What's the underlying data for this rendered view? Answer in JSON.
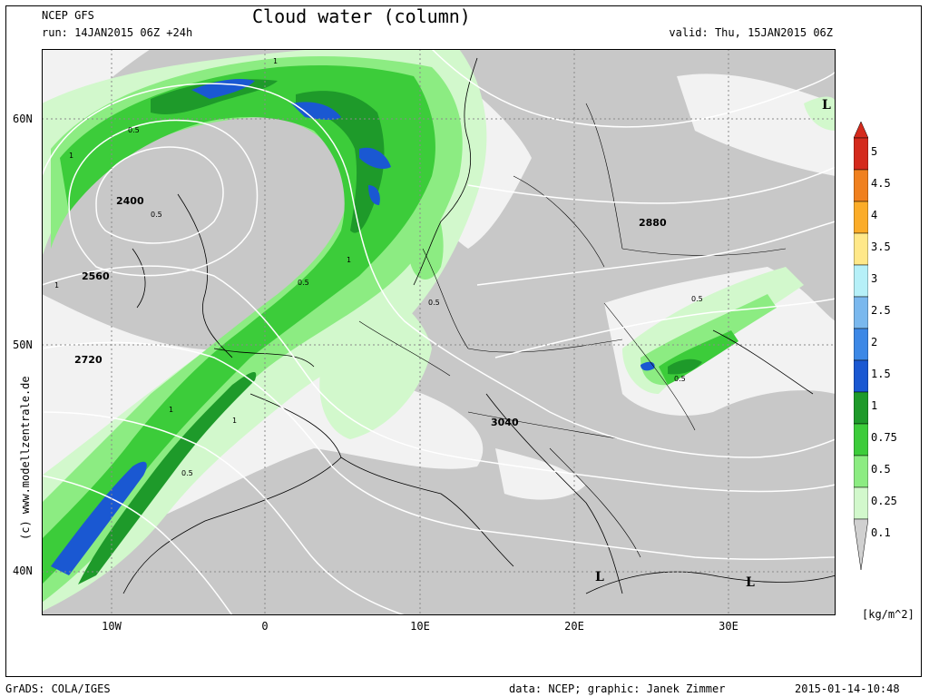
{
  "header": {
    "model": "NCEP GFS",
    "run": "run: 14JAN2015 06Z +24h",
    "title": "Cloud water (column)",
    "valid": "valid: Thu, 15JAN2015 06Z"
  },
  "axes": {
    "lat_labels": [
      "60N",
      "50N",
      "40N"
    ],
    "lon_labels": [
      "10W",
      "0",
      "10E",
      "20E",
      "30E"
    ]
  },
  "map": {
    "height_labels": [
      "2400",
      "2560",
      "2720",
      "2880",
      "3040"
    ],
    "contour_labels": [
      "1",
      "0.5"
    ],
    "pressure_marks": [
      "L",
      "L",
      "L"
    ]
  },
  "legend": {
    "levels": [
      "5",
      "4.5",
      "4",
      "3.5",
      "3",
      "2.5",
      "2",
      "1.5",
      "1",
      "0.75",
      "0.5",
      "0.25",
      "0.1"
    ],
    "colors": [
      "#d42a1c",
      "#f0801e",
      "#fbac28",
      "#ffe889",
      "#b6f0f8",
      "#7ab8ee",
      "#3c88e6",
      "#1a58d2",
      "#1e9a2a",
      "#3ccc3a",
      "#8cec82",
      "#d2f8cc",
      "#f4f4f4"
    ],
    "units": "[kg/m^2]"
  },
  "footer": {
    "left": "GrADS: COLA/IGES",
    "middle": "data: NCEP; graphic: Janek Zimmer",
    "right": "2015-01-14-10:48"
  },
  "copyright": "(c) www.modellzentrale.de"
}
